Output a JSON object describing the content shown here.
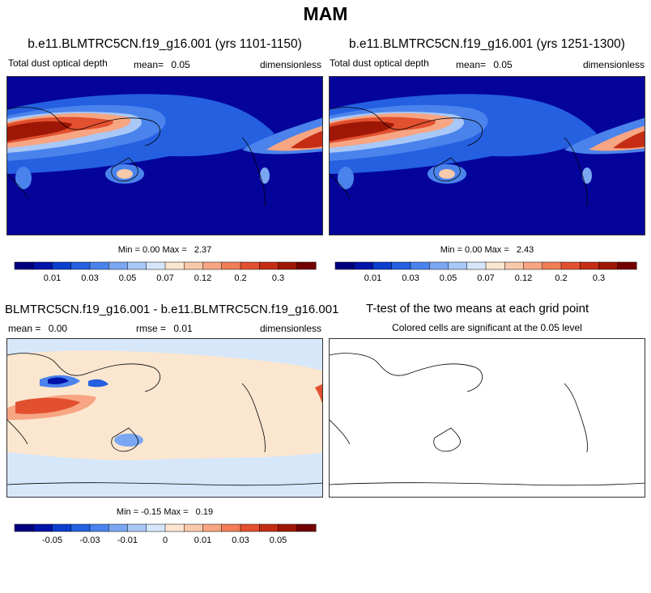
{
  "season": "MAM",
  "colors": {
    "abs_palette": [
      "#00007f",
      "#0013a8",
      "#0a3fce",
      "#2460e0",
      "#4a83ec",
      "#7aa6f2",
      "#a9c8f7",
      "#d6e6fa",
      "#fbe6d0",
      "#f9c9ab",
      "#f7a582",
      "#f27d57",
      "#e2502f",
      "#c42d14",
      "#9e1706",
      "#730000"
    ],
    "diff_palette": [
      "#00007f",
      "#0013a8",
      "#0a3fce",
      "#2460e0",
      "#4a83ec",
      "#7aa6f2",
      "#a9c8f7",
      "#d6e6fa",
      "#fbe6d0",
      "#f9c9ab",
      "#f7a582",
      "#f27d57",
      "#e2502f",
      "#c42d14",
      "#9e1706",
      "#730000"
    ],
    "ocean_background": "#05049a",
    "diff_background": "#d7e7fa"
  },
  "panels": {
    "top_left": {
      "title": "b.e11.BLMTRC5CN.f19_g16.001 (yrs 1101-1150)",
      "left_label": "Total dust optical depth",
      "mean_label": "mean=",
      "mean_value": "0.05",
      "units": "dimensionless",
      "min_label": "Min =",
      "min_value": "0.00",
      "max_label": "Max =",
      "max_value": "2.37"
    },
    "top_right": {
      "title": "b.e11.BLMTRC5CN.f19_g16.001 (yrs 1251-1300)",
      "left_label": "Total dust optical depth",
      "mean_label": "mean=",
      "mean_value": "0.05",
      "units": "dimensionless",
      "min_label": "Min =",
      "min_value": "0.00",
      "max_label": "Max =",
      "max_value": "2.43"
    },
    "bottom_left": {
      "title": "BLMTRC5CN.f19_g16.001 - b.e11.BLMTRC5CN.f19_g16.001",
      "mean_label": "mean =",
      "mean_value": "0.00",
      "rmse_label": "rmse =",
      "rmse_value": "0.01",
      "units": "dimensionless",
      "min_label": "Min =",
      "min_value": "-0.15",
      "max_label": "Max =",
      "max_value": "0.19"
    },
    "bottom_right": {
      "title": "T-test of the two means at each grid point",
      "subtitle": "Colored cells are significant at the 0.05 level"
    }
  },
  "chart_data": [
    {
      "type": "heatmap",
      "title": "b.e11.BLMTRC5CN.f19_g16.001 (yrs 1101-1150)",
      "variable": "Total dust optical depth",
      "units": "dimensionless",
      "mean": 0.05,
      "min": 0.0,
      "max": 2.37,
      "colorbar_ticks": [
        "0.01",
        "0.03",
        "0.05",
        "0.07",
        "0.12",
        "0.2",
        "0.3"
      ],
      "colorbar_levels": 16
    },
    {
      "type": "heatmap",
      "title": "b.e11.BLMTRC5CN.f19_g16.001 (yrs 1251-1300)",
      "variable": "Total dust optical depth",
      "units": "dimensionless",
      "mean": 0.05,
      "min": 0.0,
      "max": 2.43,
      "colorbar_ticks": [
        "0.01",
        "0.03",
        "0.05",
        "0.07",
        "0.12",
        "0.2",
        "0.3"
      ],
      "colorbar_levels": 16
    },
    {
      "type": "heatmap",
      "title": "BLMTRC5CN.f19_g16.001 - b.e11.BLMTRC5CN.f19_g16.001",
      "units": "dimensionless",
      "mean": 0.0,
      "rmse": 0.01,
      "min": -0.15,
      "max": 0.19,
      "colorbar_ticks": [
        "-0.05",
        "-0.03",
        "-0.01",
        "0",
        "0.01",
        "0.03",
        "0.05"
      ],
      "colorbar_levels": 16
    },
    {
      "type": "heatmap",
      "title": "T-test of the two means at each grid point",
      "subtitle": "Colored cells are significant at the 0.05 level",
      "significant_cells": 0
    }
  ]
}
